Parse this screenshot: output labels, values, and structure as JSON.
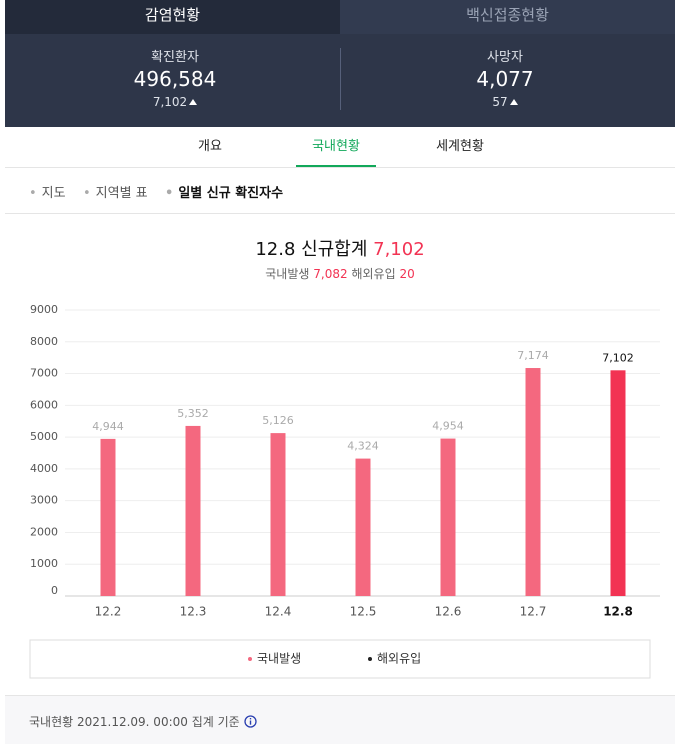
{
  "tabs": [
    "감염현황",
    "백신접종현황"
  ],
  "stats": [
    {
      "label": "확진환자",
      "value": "496,584",
      "change": "7,102"
    },
    {
      "label": "사망자",
      "value": "4,077",
      "change": "57"
    }
  ],
  "nav": [
    "개요",
    "국내현황",
    "세계현황"
  ],
  "subnav": [
    "지도",
    "지역별 표",
    "일별 신규 확진자수"
  ],
  "summary": {
    "date": "12.8",
    "label": "신규합계",
    "total": "7,102",
    "domestic_label": "국내발생",
    "domestic": "7,082",
    "overseas_label": "해외유입",
    "overseas": "20"
  },
  "chart_data": {
    "type": "bar",
    "categories": [
      "12.2",
      "12.3",
      "12.4",
      "12.5",
      "12.6",
      "12.7",
      "12.8"
    ],
    "values": [
      4944,
      5352,
      5126,
      4324,
      4954,
      7174,
      7102
    ],
    "value_labels": [
      "4,944",
      "5,352",
      "5,126",
      "4,324",
      "4,954",
      "7,174",
      "7,102"
    ],
    "colors": [
      "#f4687f",
      "#f4687f",
      "#f4687f",
      "#f4687f",
      "#f4687f",
      "#f4687f",
      "#f23353"
    ],
    "ylim": [
      0,
      9000
    ],
    "yticks": [
      0,
      1000,
      2000,
      3000,
      4000,
      5000,
      6000,
      7000,
      8000,
      9000
    ],
    "grid": true,
    "legend": [
      {
        "name": "국내발생",
        "color": "#f4687f"
      },
      {
        "name": "해외유입",
        "color": "#222222"
      }
    ]
  },
  "footer": "국내현황 2021.12.09. 00:00 집계 기준"
}
